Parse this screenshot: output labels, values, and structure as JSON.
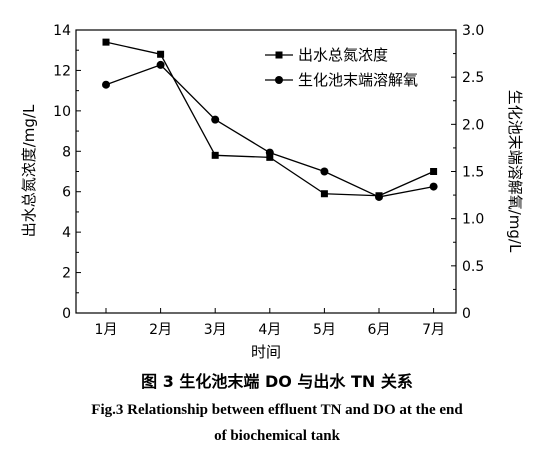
{
  "chart_data": {
    "type": "line",
    "categories": [
      "1月",
      "2月",
      "3月",
      "4月",
      "5月",
      "6月",
      "7月"
    ],
    "series": [
      {
        "name": "出水总氮浓度",
        "axis": "left",
        "marker": "square",
        "values": [
          13.4,
          12.8,
          7.8,
          7.7,
          5.9,
          5.8,
          7.0
        ]
      },
      {
        "name": "生化池末端溶解氧",
        "axis": "right",
        "marker": "circle",
        "values": [
          2.42,
          2.63,
          2.05,
          1.7,
          1.5,
          1.23,
          1.34
        ]
      }
    ],
    "xlabel": "时间",
    "ylabel_left": "出水总氮浓度/mg/L",
    "ylabel_right": "生化池末端溶解氧/mg/L",
    "ylim_left": [
      0,
      14
    ],
    "ylim_right": [
      0,
      3.0
    ],
    "yticks_left": [
      "0",
      "2",
      "4",
      "6",
      "8",
      "10",
      "12",
      "14"
    ],
    "yticks_right": [
      "0",
      "0.5",
      "1.0",
      "1.5",
      "2.0",
      "2.5",
      "3.0"
    ],
    "legend_position": "top-right",
    "grid": false
  },
  "caption": {
    "zh": "图 3   生化池末端 DO 与出水 TN 关系",
    "en_line1": "Fig.3   Relationship between effluent TN and DO at the end",
    "en_line2": "of biochemical tank"
  }
}
